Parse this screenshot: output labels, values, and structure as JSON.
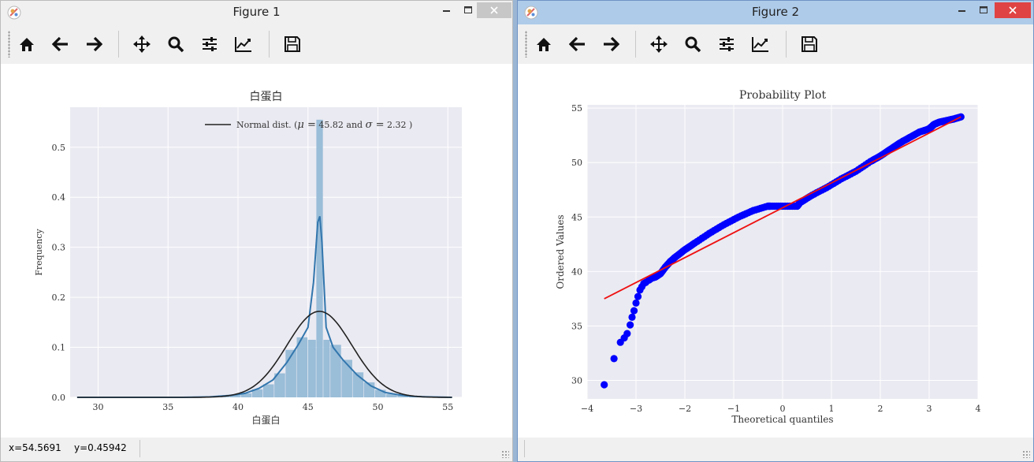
{
  "windows": [
    {
      "title": "Figure 1",
      "status": {
        "x": "x=54.5691",
        "y": "y=0.45942"
      }
    },
    {
      "title": "Figure 2",
      "status": {
        "x": "",
        "y": ""
      }
    }
  ],
  "toolbar": {
    "icons": [
      "home-icon",
      "back-arrow-icon",
      "forward-arrow-icon",
      "pan-icon",
      "zoom-icon",
      "configure-subplots-icon",
      "edit-axis-icon",
      "save-icon"
    ]
  },
  "colors": {
    "axes_bg": "#eaeaf2",
    "hist": "#93b8d6",
    "kde": "#3276ad",
    "normal": "#222222",
    "qq_points": "#0000ff",
    "qq_line": "#ee1111"
  },
  "chart_data": [
    {
      "type": "bar",
      "title": "白蛋白",
      "xlabel": "白蛋白",
      "ylabel": "Frequency",
      "xlim": [
        28,
        56
      ],
      "ylim": [
        0,
        0.58
      ],
      "xticks": [
        30,
        35,
        40,
        45,
        50,
        55
      ],
      "yticks": [
        0.0,
        0.1,
        0.2,
        0.3,
        0.4,
        0.5
      ],
      "grid": true,
      "legend_position": "top-right",
      "legend": {
        "prefix": "Normal dist. (",
        "mu": "μ =",
        "mu_value": " 45.82 and ",
        "sigma": "σ =",
        "sigma_value": " 2.32 )"
      },
      "bins": [
        {
          "x0": 38.6,
          "x1": 39.4,
          "y": 0.004
        },
        {
          "x0": 39.4,
          "x1": 40.2,
          "y": 0.006
        },
        {
          "x0": 40.2,
          "x1": 41.0,
          "y": 0.008
        },
        {
          "x0": 41.0,
          "x1": 41.8,
          "y": 0.016
        },
        {
          "x0": 41.8,
          "x1": 42.6,
          "y": 0.026
        },
        {
          "x0": 42.6,
          "x1": 43.4,
          "y": 0.048
        },
        {
          "x0": 43.4,
          "x1": 44.2,
          "y": 0.095
        },
        {
          "x0": 44.2,
          "x1": 45.0,
          "y": 0.12
        },
        {
          "x0": 45.0,
          "x1": 45.6,
          "y": 0.115
        },
        {
          "x0": 45.6,
          "x1": 46.1,
          "y": 0.555
        },
        {
          "x0": 46.1,
          "x1": 46.6,
          "y": 0.115
        },
        {
          "x0": 46.6,
          "x1": 47.4,
          "y": 0.105
        },
        {
          "x0": 47.4,
          "x1": 48.2,
          "y": 0.075
        },
        {
          "x0": 48.2,
          "x1": 49.0,
          "y": 0.05
        },
        {
          "x0": 49.0,
          "x1": 49.8,
          "y": 0.03
        },
        {
          "x0": 49.8,
          "x1": 50.6,
          "y": 0.015
        },
        {
          "x0": 50.6,
          "x1": 51.4,
          "y": 0.007
        },
        {
          "x0": 51.4,
          "x1": 52.2,
          "y": 0.004
        },
        {
          "x0": 52.2,
          "x1": 53.0,
          "y": 0.002
        },
        {
          "x0": 53.0,
          "x1": 53.8,
          "y": 0.002
        }
      ],
      "kde": {
        "x": [
          28.5,
          36,
          38,
          39.5,
          40.5,
          41.5,
          42.5,
          43.5,
          44.3,
          45.0,
          45.4,
          45.7,
          45.85,
          46.0,
          46.3,
          46.8,
          47.5,
          48.5,
          49.5,
          50.5,
          51.5,
          52.5,
          53.5,
          55.3
        ],
        "y": [
          0.0,
          0.0,
          0.001,
          0.004,
          0.008,
          0.018,
          0.035,
          0.07,
          0.105,
          0.14,
          0.23,
          0.35,
          0.362,
          0.31,
          0.14,
          0.1,
          0.075,
          0.045,
          0.023,
          0.01,
          0.005,
          0.002,
          0.001,
          0.0
        ]
      },
      "normal": {
        "mu": 45.82,
        "sigma": 2.32,
        "x_range": [
          28.5,
          55.3
        ]
      }
    },
    {
      "type": "scatter",
      "title": "Probability Plot",
      "xlabel": "Theoretical quantiles",
      "ylabel": "Ordered Values",
      "xlim": [
        -4,
        4
      ],
      "ylim": [
        28.3,
        55.3
      ],
      "xticks": [
        -4,
        -3,
        -2,
        -1,
        0,
        1,
        2,
        3,
        4
      ],
      "yticks": [
        30,
        35,
        40,
        45,
        50,
        55
      ],
      "grid": true,
      "points": {
        "x": [
          -3.65,
          -3.45,
          -3.32,
          -3.24,
          -3.18,
          -3.12,
          -3.08,
          -3.04,
          -3.0,
          -2.96,
          -2.92,
          -2.88,
          -2.84,
          -2.8,
          -2.74,
          -2.68,
          -2.6,
          -2.5,
          -2.4,
          -2.3,
          -2.2,
          -2.0,
          -1.8,
          -1.5,
          -1.2,
          -0.9,
          -0.6,
          -0.3,
          -0.25,
          0.0,
          0.3,
          0.35,
          0.6,
          0.9,
          1.2,
          1.5,
          1.8,
          2.0,
          2.2,
          2.4,
          2.6,
          2.8,
          3.0,
          3.05,
          3.1,
          3.2,
          3.3,
          3.4,
          3.5,
          3.65
        ],
        "y": [
          29.6,
          32.0,
          33.5,
          33.9,
          34.3,
          35.1,
          35.8,
          36.4,
          37.1,
          37.7,
          38.3,
          38.6,
          38.9,
          39.0,
          39.2,
          39.4,
          39.5,
          39.8,
          40.4,
          40.9,
          41.3,
          42.0,
          42.6,
          43.5,
          44.3,
          45.0,
          45.6,
          46.0,
          46.0,
          46.0,
          46.0,
          46.3,
          47.0,
          47.7,
          48.5,
          49.2,
          50.1,
          50.6,
          51.2,
          51.8,
          52.3,
          52.8,
          53.1,
          53.3,
          53.5,
          53.7,
          53.8,
          53.9,
          54.0,
          54.2
        ]
      },
      "fit_line": {
        "x": [
          -3.65,
          3.65
        ],
        "y": [
          37.5,
          54.2
        ]
      }
    }
  ]
}
